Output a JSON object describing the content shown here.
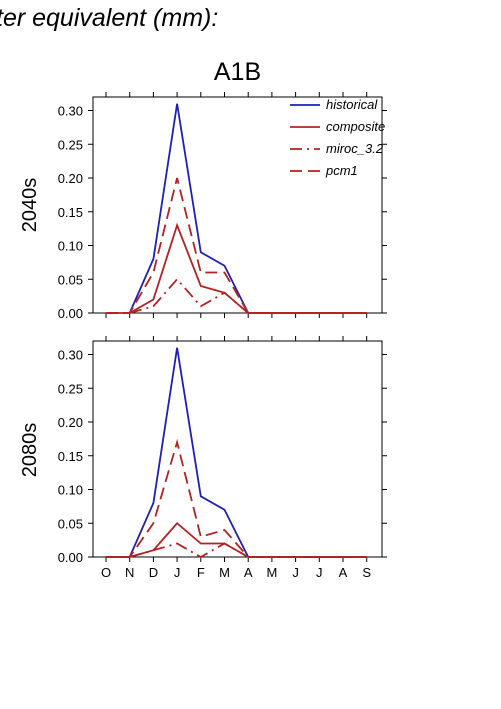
{
  "header": {
    "title": "ter equivalent (mm):"
  },
  "scenario_label": "A1B",
  "colors": {
    "historical": "#1f1fb4",
    "projection": "#b22222",
    "axis": "#000000"
  },
  "chart_data": [
    {
      "type": "line",
      "row_label": "2040s",
      "categories": [
        "O",
        "N",
        "D",
        "J",
        "F",
        "M",
        "A",
        "M",
        "J",
        "J",
        "A",
        "S"
      ],
      "ylim": [
        0,
        0.32
      ],
      "yticks": [
        "0.00",
        "0.05",
        "0.10",
        "0.15",
        "0.20",
        "0.25",
        "0.30"
      ],
      "show_x_tick_labels": false,
      "legend": "top-right",
      "series": [
        {
          "name": "historical",
          "style": "solid",
          "color": "#1f1fb4",
          "values": [
            null,
            0,
            0.08,
            0.31,
            0.09,
            0.07,
            0,
            0,
            0,
            0,
            0,
            0
          ]
        },
        {
          "name": "composite",
          "style": "solid",
          "color": "#b22222",
          "values": [
            0,
            0,
            0.02,
            0.13,
            0.04,
            0.03,
            0,
            0,
            0,
            0,
            0,
            0
          ]
        },
        {
          "name": "miroc_3.2",
          "style": "dashdot",
          "color": "#b22222",
          "values": [
            0,
            0,
            0.01,
            0.05,
            0.01,
            0.03,
            0,
            0,
            0,
            0,
            0,
            0
          ]
        },
        {
          "name": "pcm1",
          "style": "dashed",
          "color": "#b22222",
          "values": [
            0,
            0,
            0.06,
            0.2,
            0.06,
            0.06,
            0,
            0,
            0,
            0,
            0,
            0
          ]
        }
      ]
    },
    {
      "type": "line",
      "row_label": "2080s",
      "categories": [
        "O",
        "N",
        "D",
        "J",
        "F",
        "M",
        "A",
        "M",
        "J",
        "J",
        "A",
        "S"
      ],
      "ylim": [
        0,
        0.32
      ],
      "yticks": [
        "0.00",
        "0.05",
        "0.10",
        "0.15",
        "0.20",
        "0.25",
        "0.30"
      ],
      "show_x_tick_labels": true,
      "series": [
        {
          "name": "historical",
          "style": "solid",
          "color": "#1f1fb4",
          "values": [
            0,
            0,
            0.08,
            0.31,
            0.09,
            0.07,
            0,
            0,
            0,
            0,
            0,
            0
          ]
        },
        {
          "name": "composite",
          "style": "solid",
          "color": "#b22222",
          "values": [
            0,
            0,
            0.01,
            0.05,
            0.02,
            0.02,
            0,
            0,
            0,
            0,
            0,
            0
          ]
        },
        {
          "name": "miroc_3.2",
          "style": "dashdot",
          "color": "#b22222",
          "values": [
            0,
            0,
            0.01,
            0.02,
            0,
            0.02,
            0,
            0,
            0,
            0,
            0,
            0
          ]
        },
        {
          "name": "pcm1",
          "style": "dashed",
          "color": "#b22222",
          "values": [
            0,
            0,
            0.05,
            0.17,
            0.03,
            0.04,
            0,
            0,
            0,
            0,
            0,
            0
          ]
        }
      ]
    }
  ]
}
